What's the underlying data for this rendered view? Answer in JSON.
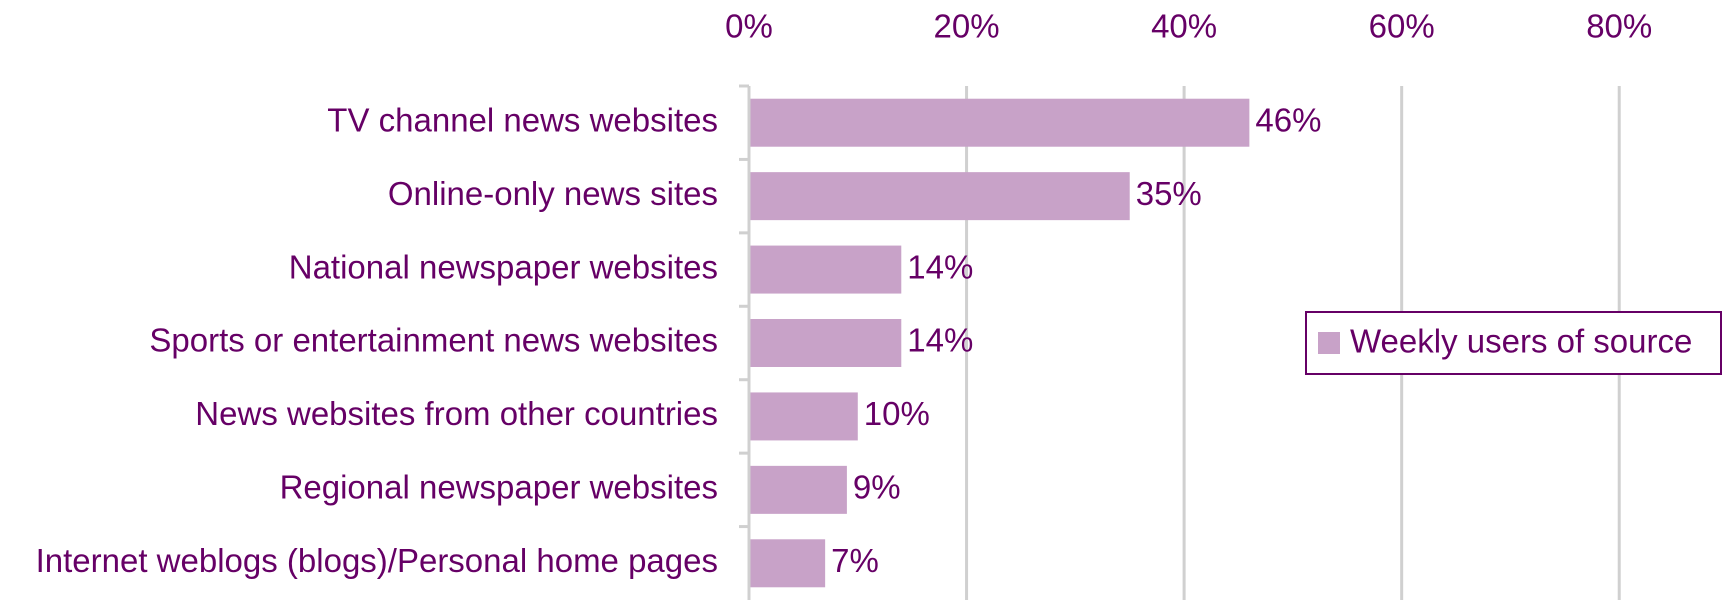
{
  "chart_data": {
    "type": "bar",
    "orientation": "horizontal",
    "categories": [
      "TV channel news websites",
      "Online-only news sites",
      "National newspaper websites",
      "Sports or entertainment news websites",
      "News websites from other countries",
      "Regional newspaper websites",
      "Internet weblogs (blogs)/Personal home pages"
    ],
    "series": [
      {
        "name": "Weekly users of source",
        "color": "#c8a2c8",
        "values": [
          46,
          35,
          14,
          14,
          10,
          9,
          7
        ],
        "value_labels": [
          "46%",
          "35%",
          "14%",
          "14%",
          "10%",
          "9%",
          "7%"
        ]
      }
    ],
    "xlim": [
      0,
      90
    ],
    "xticks": [
      {
        "value": 0,
        "label": "0%"
      },
      {
        "value": 20,
        "label": "20%"
      },
      {
        "value": 40,
        "label": "40%"
      },
      {
        "value": 60,
        "label": "60%"
      },
      {
        "value": 80,
        "label": "80%"
      }
    ],
    "grid": true,
    "legend": "right"
  }
}
